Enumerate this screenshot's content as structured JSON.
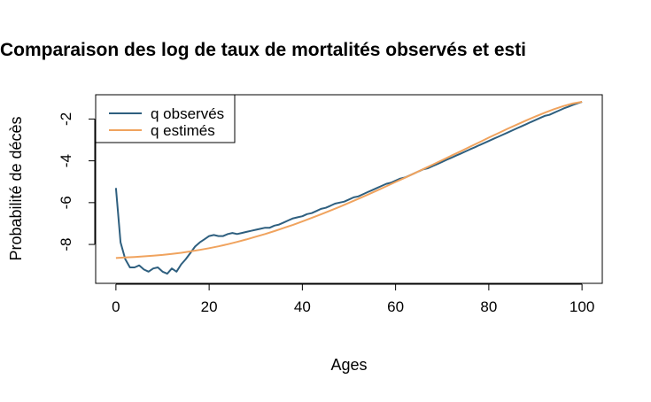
{
  "chart_data": {
    "type": "line",
    "title": "Comparaison des log de taux de mortalités observés et esti",
    "xlabel": "Ages",
    "ylabel": "Probabilité de décès",
    "xlim": [
      0,
      100
    ],
    "ylim": [
      -9.5,
      -1.2
    ],
    "xticks": [
      0,
      20,
      40,
      60,
      80,
      100
    ],
    "yticks": [
      -8,
      -6,
      -4,
      -2
    ],
    "grid": false,
    "legend": {
      "position": "top-left",
      "boxed": true
    },
    "series": [
      {
        "name": "q observés",
        "color": "#2e5f7f",
        "x": [
          0,
          1,
          2,
          3,
          4,
          5,
          6,
          7,
          8,
          9,
          10,
          11,
          12,
          13,
          14,
          15,
          16,
          17,
          18,
          19,
          20,
          21,
          22,
          23,
          24,
          25,
          26,
          27,
          28,
          29,
          30,
          31,
          32,
          33,
          34,
          35,
          36,
          37,
          38,
          39,
          40,
          41,
          42,
          43,
          44,
          45,
          46,
          47,
          48,
          49,
          50,
          51,
          52,
          53,
          54,
          55,
          56,
          57,
          58,
          59,
          60,
          61,
          62,
          63,
          64,
          65,
          66,
          67,
          68,
          69,
          70,
          71,
          72,
          73,
          74,
          75,
          76,
          77,
          78,
          79,
          80,
          81,
          82,
          83,
          84,
          85,
          86,
          87,
          88,
          89,
          90,
          91,
          92,
          93,
          94,
          95,
          96,
          97,
          98,
          99,
          100
        ],
        "values": [
          -5.3,
          -7.9,
          -8.7,
          -9.1,
          -9.1,
          -9.0,
          -9.2,
          -9.3,
          -9.15,
          -9.1,
          -9.3,
          -9.4,
          -9.15,
          -9.3,
          -8.95,
          -8.7,
          -8.4,
          -8.1,
          -7.9,
          -7.75,
          -7.6,
          -7.55,
          -7.6,
          -7.6,
          -7.5,
          -7.45,
          -7.5,
          -7.45,
          -7.4,
          -7.35,
          -7.3,
          -7.25,
          -7.2,
          -7.2,
          -7.1,
          -7.05,
          -6.95,
          -6.85,
          -6.75,
          -6.7,
          -6.65,
          -6.55,
          -6.5,
          -6.4,
          -6.3,
          -6.25,
          -6.15,
          -6.05,
          -6.0,
          -5.95,
          -5.85,
          -5.75,
          -5.7,
          -5.6,
          -5.5,
          -5.4,
          -5.3,
          -5.2,
          -5.1,
          -5.05,
          -4.95,
          -4.85,
          -4.8,
          -4.7,
          -4.6,
          -4.5,
          -4.4,
          -4.35,
          -4.25,
          -4.15,
          -4.05,
          -3.95,
          -3.85,
          -3.75,
          -3.65,
          -3.55,
          -3.45,
          -3.35,
          -3.25,
          -3.15,
          -3.05,
          -2.95,
          -2.85,
          -2.75,
          -2.65,
          -2.55,
          -2.45,
          -2.35,
          -2.25,
          -2.15,
          -2.05,
          -1.95,
          -1.85,
          -1.8,
          -1.7,
          -1.6,
          -1.5,
          -1.42,
          -1.33,
          -1.25,
          -1.18
        ]
      },
      {
        "name": "q estimés",
        "color": "#f0a35e",
        "x": [
          0,
          2,
          4,
          6,
          8,
          10,
          12,
          14,
          16,
          18,
          20,
          22,
          24,
          26,
          28,
          30,
          32,
          34,
          36,
          38,
          40,
          42,
          44,
          46,
          48,
          50,
          52,
          54,
          56,
          58,
          60,
          62,
          64,
          66,
          68,
          70,
          72,
          74,
          76,
          78,
          80,
          82,
          84,
          86,
          88,
          90,
          92,
          94,
          96,
          98,
          100
        ],
        "values": [
          -8.65,
          -8.62,
          -8.6,
          -8.57,
          -8.54,
          -8.5,
          -8.45,
          -8.4,
          -8.33,
          -8.26,
          -8.18,
          -8.09,
          -7.99,
          -7.88,
          -7.76,
          -7.63,
          -7.5,
          -7.36,
          -7.21,
          -7.06,
          -6.9,
          -6.73,
          -6.56,
          -6.38,
          -6.2,
          -6.01,
          -5.82,
          -5.62,
          -5.42,
          -5.22,
          -5.01,
          -4.81,
          -4.6,
          -4.39,
          -4.18,
          -3.97,
          -3.75,
          -3.54,
          -3.32,
          -3.11,
          -2.89,
          -2.68,
          -2.47,
          -2.27,
          -2.07,
          -1.88,
          -1.7,
          -1.53,
          -1.38,
          -1.26,
          -1.18
        ]
      }
    ]
  }
}
